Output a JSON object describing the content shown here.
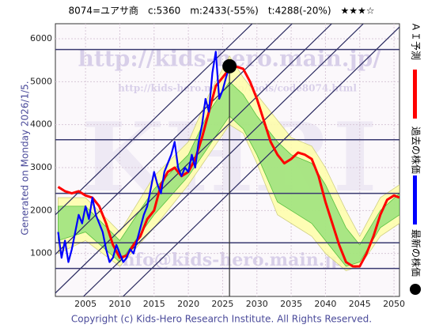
{
  "chart_data": {
    "type": "line",
    "title": "8074=ユアサ商　c:5360　m:2433(-55%)　t:4288(-20%)　★★★☆",
    "footer": "Copyright (c) Kids-Hero Research Institute. All Rights Reserved.",
    "side_label": "Generated on Monday 2026/1/5.",
    "watermarks": [
      "http://kids-hero.main.jp/",
      "http://kids-hero.main.jp/tools/code8074.html",
      "info@kids-hero.main.jp",
      "KHRI"
    ],
    "xlim": [
      2000.6,
      2050.8
    ],
    "ylim": [
      0,
      6350
    ],
    "xticks": [
      2005,
      2010,
      2015,
      2020,
      2025,
      2030,
      2035,
      2040,
      2045,
      2050
    ],
    "yticks": [
      1000,
      2000,
      3000,
      4000,
      5000,
      6000
    ],
    "grid": true,
    "levels": [
      5750,
      3650,
      2400,
      1250,
      650
    ],
    "bands": [
      {
        "color": "#ffffa8",
        "x": [
          2001,
          2005,
          2010,
          2015,
          2020,
          2023,
          2026,
          2028,
          2030,
          2033,
          2035,
          2038,
          2040,
          2043,
          2045,
          2048,
          2050.8
        ],
        "upper": [
          2300,
          2300,
          1500,
          2800,
          3600,
          4700,
          5600,
          5100,
          4700,
          4100,
          3700,
          3500,
          3000,
          2000,
          1400,
          2300,
          2600
        ],
        "lower": [
          1000,
          1300,
          700,
          1600,
          2600,
          3300,
          4000,
          3800,
          3100,
          1900,
          1700,
          1400,
          1000,
          600,
          700,
          1400,
          1700
        ]
      },
      {
        "color": "#9be27c",
        "x": [
          2001,
          2005,
          2010,
          2015,
          2020,
          2023,
          2026,
          2028,
          2030,
          2033,
          2035,
          2038,
          2040,
          2043,
          2045,
          2048,
          2050.8
        ],
        "upper": [
          2100,
          2100,
          1300,
          2500,
          3300,
          4300,
          5000,
          4700,
          4200,
          3600,
          3300,
          3100,
          2600,
          1600,
          1200,
          2000,
          2400
        ],
        "lower": [
          1300,
          1500,
          800,
          1900,
          2800,
          3500,
          4200,
          3900,
          3300,
          2200,
          2000,
          1700,
          1300,
          700,
          800,
          1600,
          1900
        ]
      }
    ],
    "series": [
      {
        "name": "ＡＩ予測",
        "color": "#ff0000",
        "x": [
          2001,
          2002,
          2003,
          2004,
          2005,
          2006,
          2007,
          2008,
          2009,
          2010,
          2011,
          2012,
          2013,
          2014,
          2015,
          2016,
          2017,
          2018,
          2019,
          2020,
          2021,
          2022,
          2023,
          2024,
          2025,
          2026,
          2027,
          2028,
          2029,
          2030,
          2031,
          2032,
          2033,
          2034,
          2035,
          2036,
          2037,
          2038,
          2039,
          2040,
          2041,
          2042,
          2043,
          2044,
          2045,
          2046,
          2047,
          2048,
          2049,
          2050,
          2050.8
        ],
        "values": [
          2550,
          2450,
          2400,
          2450,
          2350,
          2300,
          2100,
          1700,
          1200,
          900,
          950,
          1200,
          1400,
          1800,
          2000,
          2600,
          2900,
          3000,
          2800,
          2900,
          3200,
          3700,
          4300,
          4900,
          5100,
          5300,
          5350,
          5300,
          5000,
          4600,
          4100,
          3600,
          3300,
          3100,
          3200,
          3350,
          3300,
          3200,
          2800,
          2200,
          1700,
          1200,
          800,
          700,
          700,
          1000,
          1400,
          1900,
          2250,
          2350,
          2300
        ]
      },
      {
        "name": "過去の株価",
        "color": "#0000ff",
        "x": [
          2001,
          2001.5,
          2002,
          2002.5,
          2003,
          2003.5,
          2004,
          2004.5,
          2005,
          2005.5,
          2006,
          2006.5,
          2007,
          2007.5,
          2008,
          2008.5,
          2009,
          2009.5,
          2010,
          2010.5,
          2011,
          2011.5,
          2012,
          2012.5,
          2013,
          2013.5,
          2014,
          2014.5,
          2015,
          2015.5,
          2016,
          2016.5,
          2017,
          2017.5,
          2018,
          2018.5,
          2019,
          2019.5,
          2020,
          2020.5,
          2021,
          2021.5,
          2022,
          2022.5,
          2023,
          2023.5,
          2024,
          2024.5,
          2025,
          2025.5,
          2026
        ],
        "values": [
          1500,
          900,
          1300,
          800,
          1100,
          1500,
          1900,
          1700,
          2100,
          1800,
          2300,
          1900,
          1700,
          1500,
          1100,
          800,
          900,
          1200,
          1000,
          800,
          900,
          1100,
          1000,
          1300,
          1600,
          1900,
          2100,
          2500,
          2900,
          2600,
          2400,
          2900,
          3100,
          3300,
          3600,
          3000,
          2800,
          3000,
          2900,
          3300,
          3000,
          3600,
          4000,
          4600,
          4300,
          5200,
          5700,
          4600,
          4800,
          5100,
          5360
        ]
      }
    ],
    "latest": {
      "name": "最新の株価",
      "x": 2026,
      "value": 5360,
      "color": "#000000"
    }
  }
}
